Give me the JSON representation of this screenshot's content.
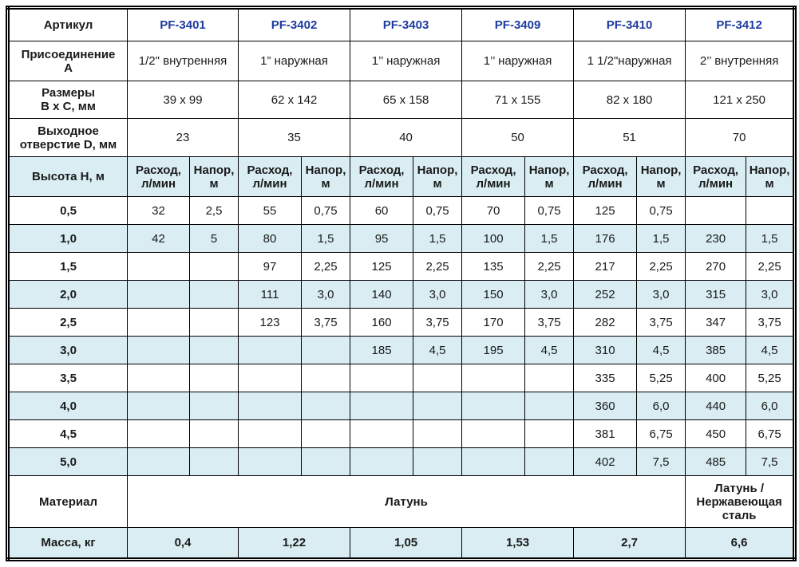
{
  "colors": {
    "band_blue": "#d9edf3",
    "article_blue": "#1e3c9e",
    "border": "#000000"
  },
  "header": {
    "label": "Артикул",
    "articles": [
      "PF-3401",
      "PF-3402",
      "PF-3403",
      "PF-3409",
      "PF-3410",
      "PF-3412"
    ]
  },
  "connection": {
    "label": "Присоединение\nА",
    "values": [
      "1/2\" внутренняя",
      "1” наружная",
      "1’’ наружная",
      "1’’ наружная",
      "1 1/2\"наружная",
      "2’’ внутренняя"
    ]
  },
  "dimensions": {
    "label": "Размеры\nВ х С, мм",
    "values": [
      "39 х 99",
      "62 х 142",
      "65 х 158",
      "71 х 155",
      "82 х 180",
      "121 х 250"
    ]
  },
  "outlet": {
    "label": "Выходное\nотверстие D, мм",
    "values": [
      "23",
      "35",
      "40",
      "50",
      "51",
      "70"
    ]
  },
  "flow_header": {
    "label": "Высота Н, м",
    "flow_label": "Расход,\nл/мин",
    "head_label": "Напор,\nм"
  },
  "performance": {
    "rows": [
      {
        "height": "0,5",
        "cells": [
          "32",
          "2,5",
          "55",
          "0,75",
          "60",
          "0,75",
          "70",
          "0,75",
          "125",
          "0,75",
          "",
          ""
        ]
      },
      {
        "height": "1,0",
        "cells": [
          "42",
          "5",
          "80",
          "1,5",
          "95",
          "1,5",
          "100",
          "1,5",
          "176",
          "1,5",
          "230",
          "1,5"
        ]
      },
      {
        "height": "1,5",
        "cells": [
          "",
          "",
          "97",
          "2,25",
          "125",
          "2,25",
          "135",
          "2,25",
          "217",
          "2,25",
          "270",
          "2,25"
        ]
      },
      {
        "height": "2,0",
        "cells": [
          "",
          "",
          "111",
          "3,0",
          "140",
          "3,0",
          "150",
          "3,0",
          "252",
          "3,0",
          "315",
          "3,0"
        ]
      },
      {
        "height": "2,5",
        "cells": [
          "",
          "",
          "123",
          "3,75",
          "160",
          "3,75",
          "170",
          "3,75",
          "282",
          "3,75",
          "347",
          "3,75"
        ]
      },
      {
        "height": "3,0",
        "cells": [
          "",
          "",
          "",
          "",
          "185",
          "4,5",
          "195",
          "4,5",
          "310",
          "4,5",
          "385",
          "4,5"
        ]
      },
      {
        "height": "3,5",
        "cells": [
          "",
          "",
          "",
          "",
          "",
          "",
          "",
          "",
          "335",
          "5,25",
          "400",
          "5,25"
        ]
      },
      {
        "height": "4,0",
        "cells": [
          "",
          "",
          "",
          "",
          "",
          "",
          "",
          "",
          "360",
          "6,0",
          "440",
          "6,0"
        ]
      },
      {
        "height": "4,5",
        "cells": [
          "",
          "",
          "",
          "",
          "",
          "",
          "",
          "",
          "381",
          "6,75",
          "450",
          "6,75"
        ]
      },
      {
        "height": "5,0",
        "cells": [
          "",
          "",
          "",
          "",
          "",
          "",
          "",
          "",
          "402",
          "7,5",
          "485",
          "7,5"
        ]
      }
    ]
  },
  "material": {
    "label": "Материал",
    "common": "Латунь",
    "last": "Латунь / Нержавеющая сталь"
  },
  "mass": {
    "label": "Масса, кг",
    "values": [
      "0,4",
      "1,22",
      "1,05",
      "1,53",
      "2,7",
      "6,6"
    ]
  }
}
